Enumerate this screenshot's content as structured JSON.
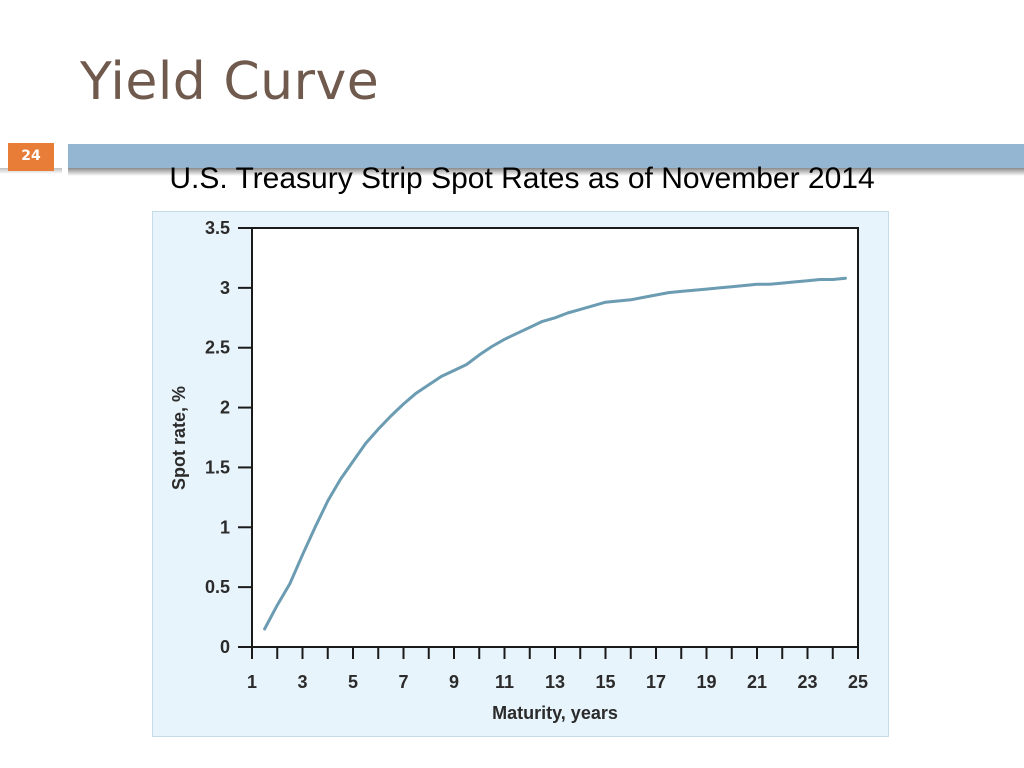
{
  "slide": {
    "title": "Yield Curve",
    "page_number": "24"
  },
  "chart_data": {
    "type": "line",
    "title": "U.S. Treasury Strip Spot Rates as of November 2014",
    "xlabel": "Maturity, years",
    "ylabel": "Spot rate, %",
    "xlim": [
      1,
      25
    ],
    "ylim": [
      0,
      3.5
    ],
    "x_ticks": [
      1,
      3,
      5,
      7,
      9,
      11,
      13,
      15,
      17,
      19,
      21,
      23,
      25
    ],
    "y_ticks": [
      0,
      0.5,
      1,
      1.5,
      2,
      2.5,
      3,
      3.5
    ],
    "series": [
      {
        "x": [
          1.5,
          2,
          2.5,
          3,
          3.5,
          4,
          4.5,
          5,
          5.5,
          6,
          6.5,
          7,
          7.5,
          8,
          8.5,
          9,
          9.5,
          10,
          10.5,
          11,
          11.5,
          12,
          12.5,
          13,
          13.5,
          14,
          14.5,
          15,
          15.5,
          16,
          16.5,
          17,
          17.5,
          18,
          18.5,
          19,
          19.5,
          20,
          20.5,
          21,
          21.5,
          22,
          22.5,
          23,
          23.5,
          24,
          24.5
        ],
        "values": [
          0.15,
          0.35,
          0.53,
          0.77,
          1.0,
          1.22,
          1.4,
          1.55,
          1.7,
          1.82,
          1.93,
          2.03,
          2.12,
          2.19,
          2.26,
          2.31,
          2.36,
          2.44,
          2.51,
          2.57,
          2.62,
          2.67,
          2.72,
          2.75,
          2.79,
          2.82,
          2.85,
          2.88,
          2.89,
          2.9,
          2.92,
          2.94,
          2.96,
          2.97,
          2.98,
          2.99,
          3.0,
          3.01,
          3.02,
          3.03,
          3.03,
          3.04,
          3.05,
          3.06,
          3.07,
          3.07,
          3.08
        ],
        "color": "#6b9cb2"
      }
    ],
    "grid": false,
    "legend": "none"
  }
}
